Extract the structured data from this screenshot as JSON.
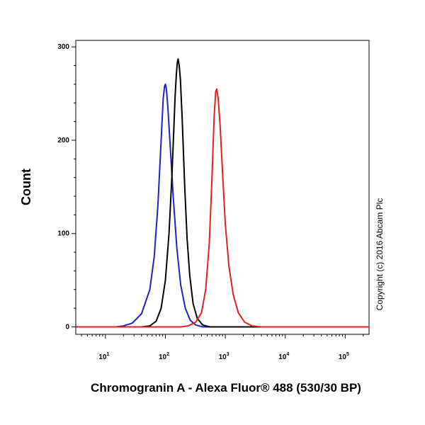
{
  "chart_data": {
    "type": "line",
    "title": "",
    "xlabel": "Chromogranin A - Alexa Fluor® 488 (530/30 BP)",
    "ylabel": "Count",
    "x_scale": "log",
    "xlim": [
      3.2,
      250000
    ],
    "ylim": [
      -8,
      307
    ],
    "y_ticks": [
      0,
      100,
      200,
      300
    ],
    "x_ticks": [
      {
        "value": 10,
        "base": "10",
        "exp": "1"
      },
      {
        "value": 100,
        "base": "10",
        "exp": "2"
      },
      {
        "value": 1000,
        "base": "10",
        "exp": "3"
      },
      {
        "value": 10000,
        "base": "10",
        "exp": "4"
      },
      {
        "value": 100000,
        "base": "10",
        "exp": "5"
      }
    ],
    "grid": false,
    "legend": "none",
    "annotation": "Copyright (c) 2016 Abcam Plc",
    "series": [
      {
        "color": "#2020c8",
        "points": [
          [
            3.2,
            0
          ],
          [
            15,
            0
          ],
          [
            20,
            1
          ],
          [
            28,
            4
          ],
          [
            40,
            14
          ],
          [
            55,
            40
          ],
          [
            65,
            75
          ],
          [
            75,
            130
          ],
          [
            85,
            200
          ],
          [
            92,
            245
          ],
          [
            97,
            258
          ],
          [
            100,
            260
          ],
          [
            104,
            255
          ],
          [
            110,
            235
          ],
          [
            120,
            195
          ],
          [
            135,
            140
          ],
          [
            155,
            85
          ],
          [
            180,
            45
          ],
          [
            215,
            20
          ],
          [
            260,
            7
          ],
          [
            320,
            2
          ],
          [
            420,
            0
          ],
          [
            250000,
            0
          ]
        ]
      },
      {
        "color": "#000000",
        "points": [
          [
            3.2,
            0
          ],
          [
            40,
            0
          ],
          [
            55,
            1
          ],
          [
            70,
            6
          ],
          [
            85,
            20
          ],
          [
            100,
            50
          ],
          [
            115,
            100
          ],
          [
            128,
            160
          ],
          [
            138,
            210
          ],
          [
            145,
            245
          ],
          [
            152,
            270
          ],
          [
            158,
            283
          ],
          [
            163,
            287
          ],
          [
            170,
            280
          ],
          [
            178,
            265
          ],
          [
            190,
            225
          ],
          [
            210,
            150
          ],
          [
            230,
            95
          ],
          [
            255,
            55
          ],
          [
            290,
            25
          ],
          [
            340,
            9
          ],
          [
            420,
            2
          ],
          [
            550,
            0
          ],
          [
            250000,
            0
          ]
        ]
      },
      {
        "color": "#e02020",
        "points": [
          [
            3.2,
            0
          ],
          [
            180,
            0
          ],
          [
            240,
            1
          ],
          [
            320,
            5
          ],
          [
            400,
            15
          ],
          [
            470,
            40
          ],
          [
            540,
            90
          ],
          [
            600,
            160
          ],
          [
            650,
            225
          ],
          [
            690,
            252
          ],
          [
            720,
            255
          ],
          [
            760,
            245
          ],
          [
            820,
            215
          ],
          [
            900,
            165
          ],
          [
            1000,
            110
          ],
          [
            1150,
            65
          ],
          [
            1350,
            35
          ],
          [
            1650,
            15
          ],
          [
            2100,
            5
          ],
          [
            2800,
            1
          ],
          [
            4000,
            0
          ],
          [
            250000,
            0
          ]
        ]
      }
    ]
  }
}
